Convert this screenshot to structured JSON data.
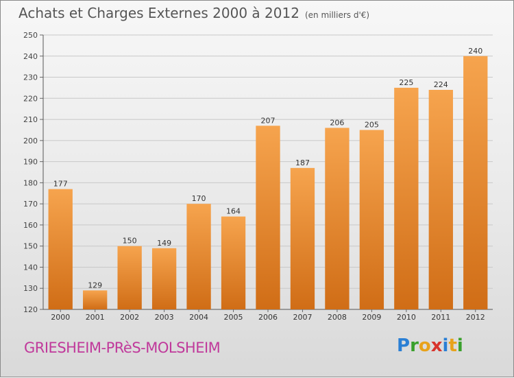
{
  "title": "Achats et Charges Externes 2000 à 2012",
  "unit": "(en milliers d'€)",
  "place": "GRIESHEIM-PRèS-MOLSHEIM",
  "logo": {
    "text": "Proxiti",
    "letters": [
      {
        "ch": "P",
        "color": "#2a7fd4"
      },
      {
        "ch": "r",
        "color": "#3aa02c"
      },
      {
        "ch": "o",
        "color": "#e8a21a"
      },
      {
        "ch": "x",
        "color": "#d8342c"
      },
      {
        "ch": "i",
        "color": "#2a7fd4"
      },
      {
        "ch": "t",
        "color": "#e8a21a"
      },
      {
        "ch": "i",
        "color": "#3aa02c"
      }
    ]
  },
  "colors": {
    "bar_top": "#f6a44e",
    "bar_bottom": "#d06d16",
    "title": "#555555",
    "place": "#c0399b"
  },
  "chart_data": {
    "type": "bar",
    "categories": [
      "2000",
      "2001",
      "2002",
      "2003",
      "2004",
      "2005",
      "2006",
      "2007",
      "2008",
      "2009",
      "2010",
      "2011",
      "2012"
    ],
    "values": [
      177,
      129,
      150,
      149,
      170,
      164,
      207,
      187,
      206,
      205,
      225,
      224,
      240
    ],
    "ylim": [
      120,
      250
    ],
    "yticks": [
      120,
      130,
      140,
      150,
      160,
      170,
      180,
      190,
      200,
      210,
      220,
      230,
      240,
      250
    ],
    "grid": true,
    "legend": "none"
  }
}
